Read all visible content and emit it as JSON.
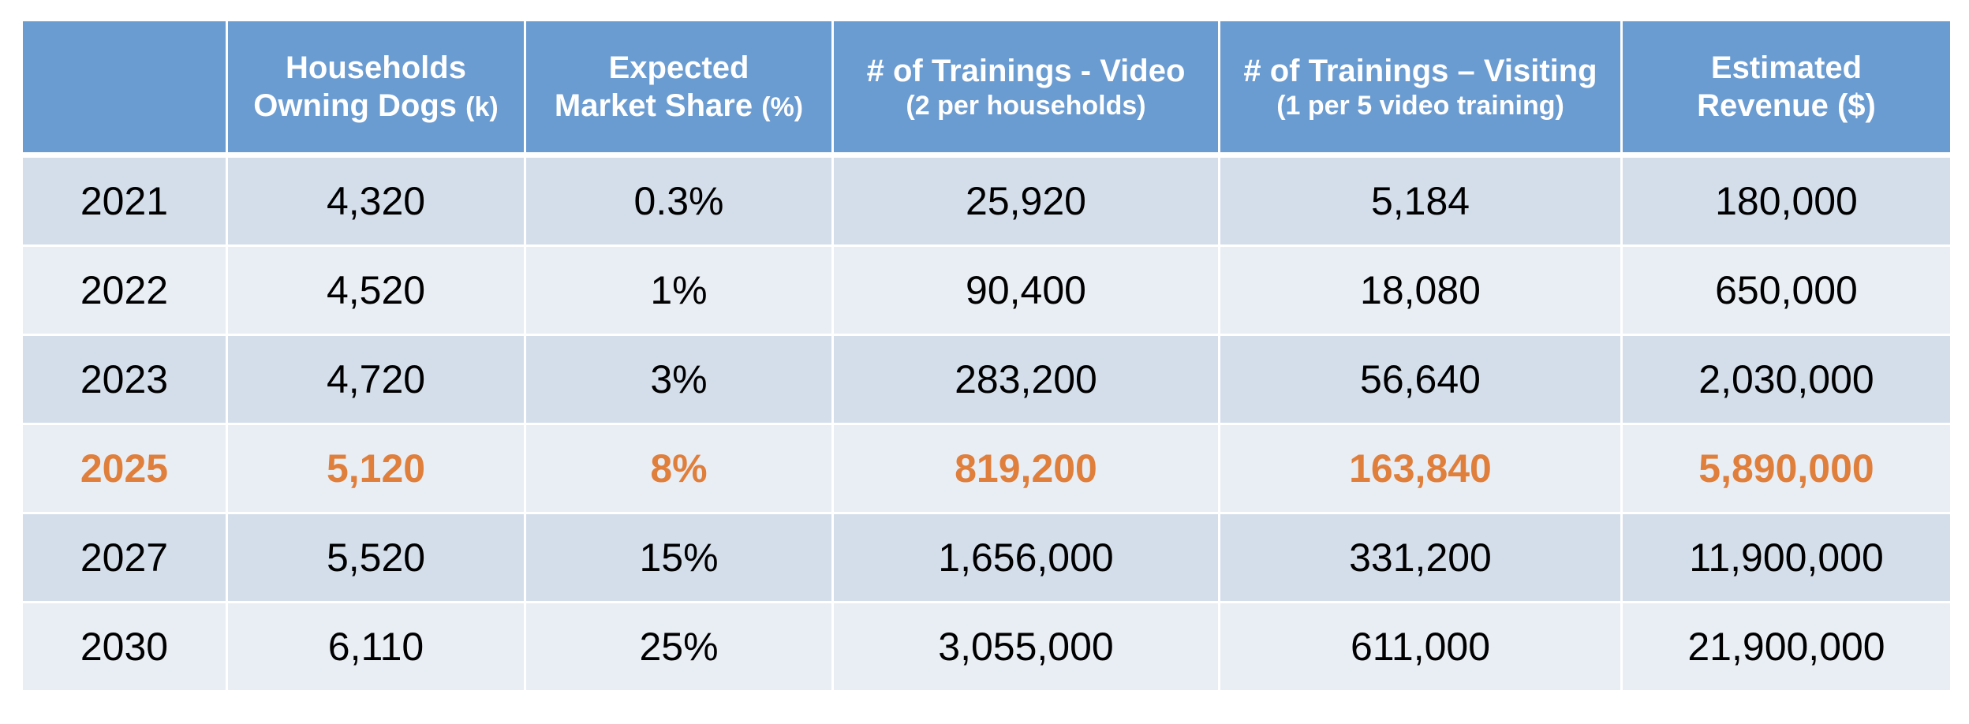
{
  "table": {
    "headers": [
      {
        "line1": "",
        "line2": "",
        "small": ""
      },
      {
        "line1": "Households",
        "line2": "Owning Dogs",
        "small": "(k)"
      },
      {
        "line1": "Expected",
        "line2": "Market Share",
        "small": "(%)"
      },
      {
        "line1": "# of Trainings - Video",
        "sub": "(2 per households)"
      },
      {
        "line1": "# of Trainings – Visiting",
        "sub": "(1 per  5 video training)"
      },
      {
        "line1": "Estimated",
        "line2": "Revenue ($)",
        "small": ""
      }
    ],
    "rows": [
      [
        "2021",
        "4,320",
        "0.3%",
        "25,920",
        "5,184",
        "180,000"
      ],
      [
        "2022",
        "4,520",
        "1%",
        "90,400",
        "18,080",
        "650,000"
      ],
      [
        "2023",
        "4,720",
        "3%",
        "283,200",
        "56,640",
        "2,030,000"
      ],
      [
        "2025",
        "5,120",
        "8%",
        "819,200",
        "163,840",
        "5,890,000"
      ],
      [
        "2027",
        "5,520",
        "15%",
        "1,656,000",
        "331,200",
        "11,900,000"
      ],
      [
        "2030",
        "6,110",
        "25%",
        "3,055,000",
        "611,000",
        "21,900,000"
      ]
    ],
    "highlight_row_year": "2025"
  },
  "colors": {
    "header_bg": "#6a9bd1",
    "header_text": "#ffffff",
    "row_band_dark": "#d4deeb",
    "row_band_light": "#e9eef5",
    "highlight_text": "#e07f3b"
  }
}
